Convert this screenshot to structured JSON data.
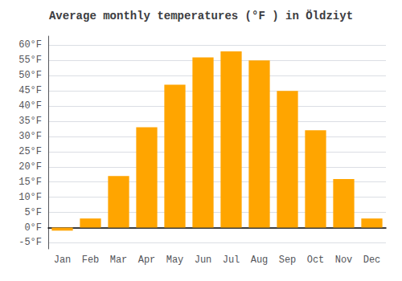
{
  "chart_data": {
    "type": "bar",
    "title": "Average monthly temperatures (°F ) in Öldziyt",
    "categories": [
      "Jan",
      "Feb",
      "Mar",
      "Apr",
      "May",
      "Jun",
      "Jul",
      "Aug",
      "Sep",
      "Oct",
      "Nov",
      "Dec"
    ],
    "values": [
      -1,
      3,
      17,
      33,
      47,
      56,
      58,
      55,
      45,
      32,
      16,
      3
    ],
    "color": "#FFA500",
    "ylim": [
      -7,
      63
    ],
    "yticks": [
      {
        "value": -5,
        "label": "-5°F"
      },
      {
        "value": 0,
        "label": "0°F"
      },
      {
        "value": 5,
        "label": "5°F"
      },
      {
        "value": 10,
        "label": "10°F"
      },
      {
        "value": 15,
        "label": "15°F"
      },
      {
        "value": 20,
        "label": "20°F"
      },
      {
        "value": 25,
        "label": "25°F"
      },
      {
        "value": 30,
        "label": "30°F"
      },
      {
        "value": 35,
        "label": "35°F"
      },
      {
        "value": 40,
        "label": "40°F"
      },
      {
        "value": 45,
        "label": "45°F"
      },
      {
        "value": 50,
        "label": "50°F"
      },
      {
        "value": 55,
        "label": "55°F"
      },
      {
        "value": 60,
        "label": "60°F"
      }
    ],
    "grid": true
  }
}
